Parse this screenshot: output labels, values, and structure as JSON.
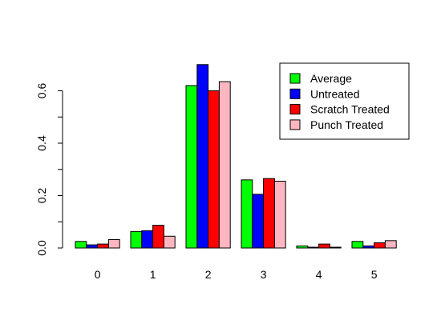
{
  "chart_data": {
    "type": "bar",
    "title": "",
    "xlabel": "",
    "ylabel": "",
    "categories": [
      "0",
      "1",
      "2",
      "3",
      "4",
      "5"
    ],
    "ylim": [
      0,
      0.7
    ],
    "yticks": [
      "0.0",
      "0.2",
      "0.4",
      "0.6"
    ],
    "legend_position": "top-right",
    "grid": false,
    "series": [
      {
        "name": "Average",
        "color": "#00ff00",
        "values": [
          0.025,
          0.063,
          0.62,
          0.26,
          0.008,
          0.025
        ]
      },
      {
        "name": "Untreated",
        "color": "#0000ff",
        "values": [
          0.012,
          0.066,
          0.7,
          0.205,
          0.003,
          0.008
        ]
      },
      {
        "name": "Scratch Treated",
        "color": "#ff0000",
        "values": [
          0.015,
          0.087,
          0.6,
          0.265,
          0.015,
          0.02
        ]
      },
      {
        "name": "Punch Treated",
        "color": "#ffb6c1",
        "values": [
          0.032,
          0.045,
          0.635,
          0.255,
          0.003,
          0.028
        ]
      }
    ]
  }
}
